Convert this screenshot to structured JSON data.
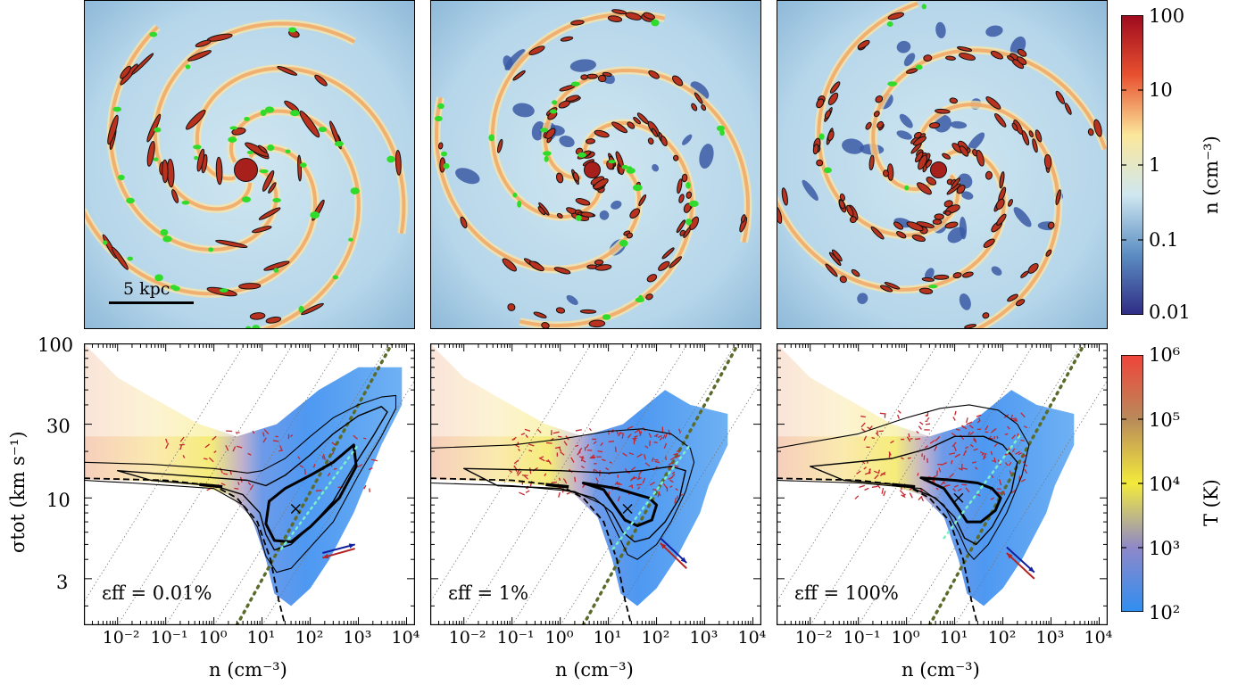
{
  "maps": {
    "scalebar_label": "5 kpc",
    "colorbar": {
      "label": "n (cm⁻³)",
      "ticks": [
        "100",
        "10",
        "1",
        "0.1",
        "0.01"
      ],
      "colors": [
        "#9e0a1e",
        "#e8512f",
        "#fbe79b",
        "#cfe7f0",
        "#5b8dc2",
        "#2f2c85"
      ]
    },
    "panels": [
      {
        "name": "eff-0.01",
        "arm_count": 5
      },
      {
        "name": "eff-1",
        "arm_count": 4
      },
      {
        "name": "eff-100",
        "arm_count": 4
      }
    ]
  },
  "temperature_colorbar": {
    "label": "T (K)",
    "ticks": [
      "10⁶",
      "10⁵",
      "10⁴",
      "10³",
      "10²"
    ],
    "colors": [
      "#f0443a",
      "#b98a5a",
      "#f3ea3c",
      "#8e88c9",
      "#2f8ef0"
    ]
  },
  "chart_data": [
    {
      "type": "heatmap",
      "annotation": "εff = 0.01%",
      "xlabel": "n (cm⁻³)",
      "ylabel": "σtot (km s⁻¹)",
      "xscale": "log",
      "yscale": "log",
      "xlim": [
        0.002,
        15000
      ],
      "ylim": [
        1.5,
        100
      ],
      "xticks": [
        "10⁻²",
        "10⁻¹",
        "10⁰",
        "10¹",
        "10²",
        "10³",
        "10⁴"
      ],
      "yticks": [
        "3",
        "10",
        "30",
        "100"
      ],
      "peak": {
        "n": 50,
        "sigma": 8.5
      },
      "arrows": {
        "blue": [
          [
            180,
            4.4
          ],
          [
            850,
            5.0
          ]
        ],
        "red": [
          [
            850,
            4.7
          ],
          [
            180,
            4.1
          ]
        ]
      },
      "contour_thin": [
        [
          0.002,
          17
        ],
        [
          0.05,
          16.5
        ],
        [
          1,
          15.5
        ],
        [
          5,
          14.5
        ],
        [
          10,
          15
        ],
        [
          30,
          18
        ],
        [
          100,
          25
        ],
        [
          300,
          33
        ],
        [
          1000,
          40
        ],
        [
          3000,
          45
        ],
        [
          6000,
          46
        ],
        [
          6000,
          38
        ],
        [
          3000,
          25
        ],
        [
          1000,
          14
        ],
        [
          300,
          7
        ],
        [
          100,
          4.8
        ],
        [
          40,
          3.5
        ],
        [
          20,
          3.3
        ],
        [
          12,
          4.2
        ],
        [
          8,
          6.5
        ],
        [
          4,
          9
        ],
        [
          1,
          11.5
        ],
        [
          0.02,
          12.5
        ],
        [
          0.002,
          13
        ]
      ],
      "contour_thick": [
        [
          0.01,
          15
        ],
        [
          1,
          13.5
        ],
        [
          5,
          13
        ],
        [
          12,
          12
        ],
        [
          30,
          14
        ],
        [
          100,
          19
        ],
        [
          300,
          26
        ],
        [
          1000,
          34
        ],
        [
          3000,
          39
        ],
        [
          4000,
          36
        ],
        [
          2000,
          25
        ],
        [
          800,
          16
        ],
        [
          300,
          9.5
        ],
        [
          100,
          6.5
        ],
        [
          40,
          5
        ],
        [
          18,
          4.6
        ],
        [
          12,
          5.8
        ],
        [
          9,
          8
        ],
        [
          4,
          10.5
        ],
        [
          1,
          12
        ],
        [
          0.05,
          13
        ]
      ],
      "contour_inner": [
        [
          12,
          6.8
        ],
        [
          14,
          9.5
        ],
        [
          30,
          11.5
        ],
        [
          100,
          14
        ],
        [
          300,
          17
        ],
        [
          800,
          22
        ],
        [
          900,
          16
        ],
        [
          400,
          10
        ],
        [
          100,
          6.5
        ],
        [
          40,
          5.2
        ],
        [
          18,
          5.3
        ],
        [
          12,
          6.8
        ]
      ],
      "dashed_boundary": [
        [
          0.002,
          13.4
        ],
        [
          0.1,
          13
        ],
        [
          1,
          12
        ],
        [
          3,
          10
        ],
        [
          8,
          7
        ],
        [
          15,
          4
        ],
        [
          22,
          2.2
        ],
        [
          30,
          1.5
        ]
      ],
      "dotted_line": [
        [
          3,
          1.5
        ],
        [
          5000,
          100
        ]
      ],
      "bg_lines_offsets": [
        -3,
        -2,
        -1,
        0,
        1
      ]
    },
    {
      "type": "heatmap",
      "annotation": "εff = 1%",
      "xlabel": "n (cm⁻³)",
      "xscale": "log",
      "yscale": "log",
      "xlim": [
        0.002,
        15000
      ],
      "ylim": [
        1.5,
        100
      ],
      "xticks": [
        "10⁻²",
        "10⁻¹",
        "10⁰",
        "10¹",
        "10²",
        "10³",
        "10⁴"
      ],
      "yticks": [
        "3",
        "10",
        "30",
        "100"
      ],
      "peak": {
        "n": 25,
        "sigma": 8.5
      },
      "arrows": {
        "blue": [
          [
            120,
            5.5
          ],
          [
            420,
            3.8
          ]
        ],
        "red": [
          [
            420,
            3.5
          ],
          [
            120,
            5.1
          ]
        ]
      },
      "contour_thin": [
        [
          0.002,
          21
        ],
        [
          0.1,
          22
        ],
        [
          1,
          24
        ],
        [
          10,
          27
        ],
        [
          50,
          28
        ],
        [
          200,
          26
        ],
        [
          500,
          21
        ],
        [
          600,
          17
        ],
        [
          400,
          11
        ],
        [
          200,
          7
        ],
        [
          100,
          5
        ],
        [
          40,
          4
        ],
        [
          25,
          4.3
        ],
        [
          15,
          6
        ],
        [
          8,
          9
        ],
        [
          2,
          11
        ],
        [
          0.1,
          12
        ],
        [
          0.002,
          12.5
        ]
      ],
      "contour_thick": [
        [
          0.01,
          15.5
        ],
        [
          1,
          15
        ],
        [
          10,
          14.5
        ],
        [
          50,
          15
        ],
        [
          200,
          16
        ],
        [
          400,
          15
        ],
        [
          300,
          10
        ],
        [
          150,
          7
        ],
        [
          70,
          5.5
        ],
        [
          35,
          5.2
        ],
        [
          20,
          6
        ],
        [
          12,
          8
        ],
        [
          5,
          10
        ],
        [
          1,
          11.5
        ],
        [
          0.05,
          12
        ]
      ],
      "contour_inner": [
        [
          3,
          12.5
        ],
        [
          15,
          11.5
        ],
        [
          40,
          10.5
        ],
        [
          70,
          10
        ],
        [
          100,
          9
        ],
        [
          80,
          7.2
        ],
        [
          40,
          6.6
        ],
        [
          22,
          7.2
        ],
        [
          15,
          8.5
        ],
        [
          8,
          11.3
        ],
        [
          3,
          12.5
        ]
      ],
      "dashed_boundary": [
        [
          0.002,
          13.4
        ],
        [
          0.1,
          13
        ],
        [
          1,
          12
        ],
        [
          3,
          10
        ],
        [
          8,
          7
        ],
        [
          15,
          4
        ],
        [
          22,
          2.2
        ],
        [
          30,
          1.5
        ]
      ],
      "dotted_line": [
        [
          3,
          1.5
        ],
        [
          5000,
          100
        ]
      ],
      "bg_lines_offsets": [
        -3,
        -2,
        -1,
        0,
        1
      ]
    },
    {
      "type": "heatmap",
      "annotation": "εff = 100%",
      "xlabel": "n (cm⁻³)",
      "xscale": "log",
      "yscale": "log",
      "xlim": [
        0.002,
        15000
      ],
      "ylim": [
        1.5,
        100
      ],
      "xticks": [
        "10⁻²",
        "10⁻¹",
        "10⁰",
        "10¹",
        "10²",
        "10³",
        "10⁴"
      ],
      "yticks": [
        "3",
        "10",
        "30",
        "100"
      ],
      "peak": {
        "n": 12,
        "sigma": 10
      },
      "arrows": {
        "blue": [
          [
            120,
            4.8
          ],
          [
            450,
            3.3
          ]
        ],
        "red": [
          [
            450,
            3.0
          ],
          [
            120,
            4.4
          ]
        ]
      },
      "contour_thin": [
        [
          0.002,
          21
        ],
        [
          0.1,
          26
        ],
        [
          1,
          33
        ],
        [
          5,
          38
        ],
        [
          20,
          40
        ],
        [
          80,
          37
        ],
        [
          200,
          30
        ],
        [
          350,
          22
        ],
        [
          250,
          14
        ],
        [
          120,
          8
        ],
        [
          50,
          5
        ],
        [
          25,
          4
        ],
        [
          18,
          4.5
        ],
        [
          12,
          6
        ],
        [
          6,
          9
        ],
        [
          2,
          11.5
        ],
        [
          0.1,
          12.5
        ],
        [
          0.002,
          13
        ]
      ],
      "contour_thick": [
        [
          0.01,
          16
        ],
        [
          0.5,
          18
        ],
        [
          3,
          21
        ],
        [
          10,
          25
        ],
        [
          40,
          25
        ],
        [
          100,
          22
        ],
        [
          200,
          17
        ],
        [
          150,
          11
        ],
        [
          60,
          6.5
        ],
        [
          28,
          5
        ],
        [
          16,
          5.5
        ],
        [
          10,
          7.5
        ],
        [
          4,
          10
        ],
        [
          1,
          12
        ],
        [
          0.05,
          13
        ]
      ],
      "contour_inner": [
        [
          2,
          13.5
        ],
        [
          10,
          13
        ],
        [
          30,
          12.5
        ],
        [
          60,
          11.5
        ],
        [
          90,
          10
        ],
        [
          70,
          8.3
        ],
        [
          35,
          7
        ],
        [
          18,
          7
        ],
        [
          12,
          8.5
        ],
        [
          6,
          11.5
        ],
        [
          2,
          13.5
        ]
      ],
      "dashed_boundary": [
        [
          0.002,
          13.4
        ],
        [
          0.1,
          13
        ],
        [
          1,
          12
        ],
        [
          3,
          10
        ],
        [
          8,
          7
        ],
        [
          15,
          4
        ],
        [
          22,
          2.2
        ],
        [
          30,
          1.5
        ]
      ],
      "dotted_line": [
        [
          3,
          1.5
        ],
        [
          5000,
          100
        ]
      ],
      "bg_lines_offsets": [
        -3,
        -2,
        -1,
        0,
        1
      ]
    }
  ],
  "labels": {
    "x_label": "n (cm⁻³)",
    "y_label": "σtot (km s⁻¹)"
  }
}
